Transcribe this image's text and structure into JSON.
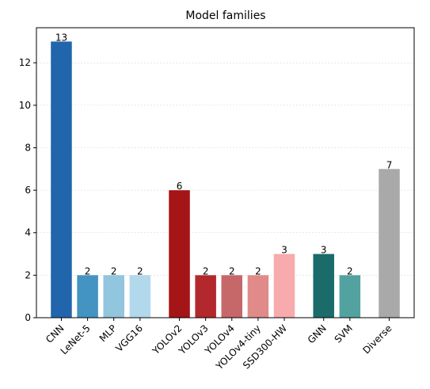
{
  "chart_data": {
    "type": "bar",
    "title": "Model families",
    "xlabel": "",
    "ylabel": "",
    "ylim": [
      0,
      13.65
    ],
    "yticks": [
      0,
      2,
      4,
      6,
      8,
      10,
      12
    ],
    "grid": "horizontal",
    "categories": [
      "CNN",
      "LeNet-5",
      "MLP",
      "VGG16",
      "YOLOv2",
      "YOLOv3",
      "YOLOv4",
      "YOLOv4-tiny",
      "SSD300-HW",
      "GNN",
      "SVM",
      "Diverse"
    ],
    "values": [
      13,
      2,
      2,
      2,
      6,
      2,
      2,
      2,
      3,
      3,
      2,
      7
    ],
    "value_labels": [
      "13",
      "2",
      "2",
      "2",
      "6",
      "2",
      "2",
      "2",
      "3",
      "3",
      "2",
      "7"
    ],
    "groups": [
      [
        0,
        1,
        2,
        3
      ],
      [
        4,
        5,
        6,
        7,
        8
      ],
      [
        9,
        10
      ],
      [
        11
      ]
    ],
    "colors": [
      "#2166ac",
      "#4393c3",
      "#92c5de",
      "#b2d8ec",
      "#a51417",
      "#b2282c",
      "#c6676a",
      "#e08b89",
      "#f7abac",
      "#1b6b6b",
      "#52a39f",
      "#a9a9a9"
    ]
  }
}
